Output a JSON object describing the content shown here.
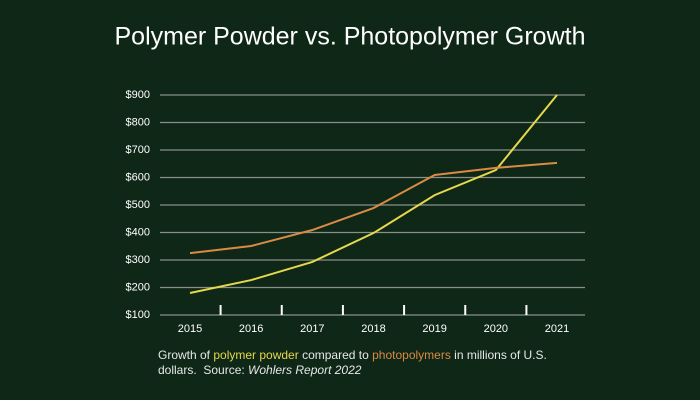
{
  "chart_data": {
    "type": "line",
    "title": "Polymer Powder vs. Photopolymer Growth",
    "categories": [
      "2015",
      "2016",
      "2017",
      "2018",
      "2019",
      "2020",
      "2021"
    ],
    "series": [
      {
        "name": "polymer powder",
        "color": "#e6d84c",
        "values": [
          180,
          227,
          293,
          398,
          536,
          627,
          900
        ]
      },
      {
        "name": "photopolymers",
        "color": "#d98a45",
        "values": [
          325,
          351,
          409,
          489,
          609,
          635,
          653
        ]
      }
    ],
    "ylim": [
      100,
      900
    ],
    "yticks": [
      {
        "value": 100,
        "label": "$100"
      },
      {
        "value": 200,
        "label": "$200"
      },
      {
        "value": 300,
        "label": "$300"
      },
      {
        "value": 400,
        "label": "$400"
      },
      {
        "value": 500,
        "label": "$500"
      },
      {
        "value": 600,
        "label": "$600"
      },
      {
        "value": 700,
        "label": "$700"
      },
      {
        "value": 800,
        "label": "$800"
      },
      {
        "value": 900,
        "label": "$900"
      }
    ],
    "grid": true,
    "caption_parts": [
      "Growth of ",
      " compared to ",
      " in millions of U.S. dollars.  Source: "
    ],
    "source": "Wohlers Report 2022"
  }
}
